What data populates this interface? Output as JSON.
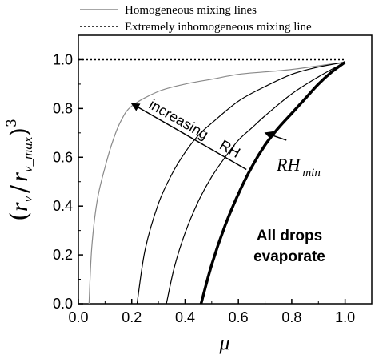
{
  "chart_data": {
    "type": "line",
    "xlabel": "μ",
    "ylabel_parts": {
      "r": "r",
      "sub_v": "v",
      "slash": "/",
      "sub_vmax": "v_max",
      "exponent": "3"
    },
    "xlim": [
      0.0,
      1.1
    ],
    "ylim": [
      0.0,
      1.1
    ],
    "xticks": [
      0.0,
      0.2,
      0.4,
      0.6,
      0.8,
      1.0
    ],
    "xtick_labels": [
      "0.0",
      "0.2",
      "0.4",
      "0.6",
      "0.8",
      "1.0"
    ],
    "yticks": [
      0.0,
      0.2,
      0.4,
      0.6,
      0.8,
      1.0
    ],
    "ytick_labels": [
      "0.0",
      "0.2",
      "0.4",
      "0.6",
      "0.8",
      "1.0"
    ],
    "legend": {
      "placement": "top",
      "entries": [
        {
          "label": "Homogeneous mixing lines",
          "style": "solid",
          "color": "#8a8a8a"
        },
        {
          "label": "Extremely inhomogeneous mixing line",
          "style": "dotted",
          "color": "#000000"
        }
      ]
    },
    "series": [
      {
        "style": "dotted",
        "color": "#000000",
        "x": [
          0.0,
          1.0
        ],
        "y": [
          1.0,
          1.0
        ]
      },
      {
        "style": "solid",
        "color": "#8a8a8a",
        "width": 1.2,
        "x": [
          0.04,
          0.05,
          0.07,
          0.1,
          0.13,
          0.16,
          0.2,
          0.3,
          0.4,
          0.5,
          0.6,
          0.7,
          0.8,
          0.9,
          1.0
        ],
        "y": [
          0.0,
          0.23,
          0.42,
          0.56,
          0.67,
          0.75,
          0.81,
          0.87,
          0.9,
          0.92,
          0.94,
          0.95,
          0.96,
          0.975,
          0.99
        ]
      },
      {
        "style": "solid",
        "color": "#000000",
        "width": 1.2,
        "x": [
          0.22,
          0.25,
          0.3,
          0.35,
          0.4,
          0.45,
          0.5,
          0.6,
          0.7,
          0.8,
          0.9,
          1.0
        ],
        "y": [
          0.0,
          0.22,
          0.41,
          0.53,
          0.62,
          0.69,
          0.74,
          0.83,
          0.89,
          0.94,
          0.97,
          0.99
        ]
      },
      {
        "style": "solid",
        "color": "#000000",
        "width": 1.2,
        "x": [
          0.33,
          0.36,
          0.4,
          0.45,
          0.5,
          0.55,
          0.6,
          0.65,
          0.7,
          0.8,
          0.9,
          1.0
        ],
        "y": [
          0.0,
          0.15,
          0.29,
          0.42,
          0.52,
          0.6,
          0.67,
          0.72,
          0.77,
          0.86,
          0.93,
          0.99
        ]
      },
      {
        "style": "solid",
        "color": "#000000",
        "width": 3.5,
        "x": [
          0.46,
          0.5,
          0.55,
          0.6,
          0.65,
          0.7,
          0.75,
          0.8,
          0.85,
          0.9,
          0.95,
          1.0
        ],
        "y": [
          0.0,
          0.16,
          0.32,
          0.45,
          0.56,
          0.65,
          0.72,
          0.78,
          0.84,
          0.9,
          0.95,
          0.99
        ]
      }
    ],
    "annotations": {
      "increasing_word": "increasing",
      "rh_word": "RH",
      "rh_min_main": "RH",
      "rh_min_sub": "min",
      "all_drops_line1": "All drops",
      "all_drops_line2": "evaporate"
    },
    "increasing_arrow": {
      "tail": [
        0.63,
        0.55
      ],
      "head": [
        0.2,
        0.82
      ]
    },
    "rh_min_arrow": {
      "tail": [
        0.78,
        0.67
      ],
      "head": [
        0.7,
        0.7
      ]
    }
  }
}
